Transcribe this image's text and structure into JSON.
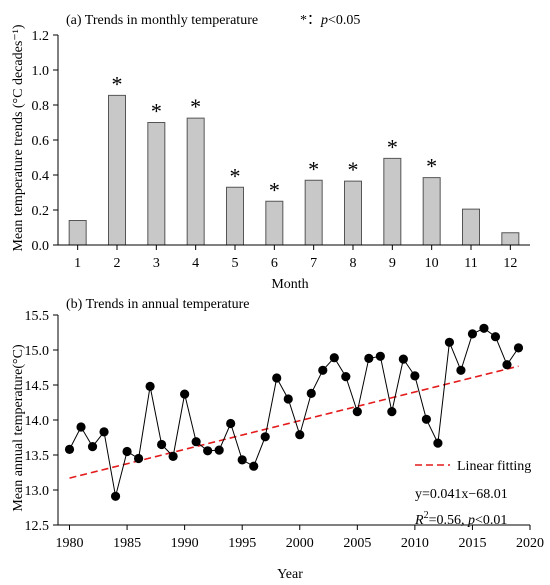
{
  "chart_data": [
    {
      "type": "bar",
      "title": "(a) Trends in monthly temperature",
      "significance_note": "*：p<0.05",
      "significance_marker": "*",
      "xlabel": "Month",
      "ylabel": "Mean temperature trends (°C decades⁻¹)",
      "ylim": [
        0,
        1.2
      ],
      "yticks": [
        "0.0",
        "0.2",
        "0.4",
        "0.6",
        "0.8",
        "1.0",
        "1.2"
      ],
      "categories": [
        "1",
        "2",
        "3",
        "4",
        "5",
        "6",
        "7",
        "8",
        "9",
        "10",
        "11",
        "12"
      ],
      "values": [
        0.14,
        0.855,
        0.7,
        0.725,
        0.33,
        0.25,
        0.37,
        0.365,
        0.495,
        0.385,
        0.205,
        0.07
      ],
      "significant": [
        false,
        true,
        true,
        true,
        true,
        true,
        true,
        true,
        true,
        true,
        false,
        false
      ],
      "bar_color": "#c8c8c8"
    },
    {
      "type": "line",
      "title": "(b) Trends in annual temperature",
      "xlabel": "Year",
      "ylabel": "Mean annual temperature(°C)",
      "xlim": [
        1979,
        2020
      ],
      "ylim": [
        12.5,
        15.5
      ],
      "xticks": [
        "1980",
        "1985",
        "1990",
        "1995",
        "2000",
        "2005",
        "2010",
        "2015",
        "2020"
      ],
      "yticks": [
        "12.5",
        "13.0",
        "13.5",
        "14.0",
        "14.5",
        "15.0",
        "15.5"
      ],
      "x": [
        1980,
        1981,
        1982,
        1983,
        1984,
        1985,
        1986,
        1987,
        1988,
        1989,
        1990,
        1991,
        1992,
        1993,
        1994,
        1995,
        1996,
        1997,
        1998,
        1999,
        2000,
        2001,
        2002,
        2003,
        2004,
        2005,
        2006,
        2007,
        2008,
        2009,
        2010,
        2011,
        2012,
        2013,
        2014,
        2015,
        2016,
        2017,
        2018,
        2019
      ],
      "y": [
        13.58,
        13.9,
        13.62,
        13.83,
        12.91,
        13.55,
        13.45,
        14.48,
        13.65,
        13.48,
        14.37,
        13.69,
        13.56,
        13.57,
        13.95,
        13.43,
        13.34,
        13.76,
        14.6,
        14.3,
        13.79,
        14.38,
        14.71,
        14.89,
        14.62,
        14.12,
        14.88,
        14.91,
        14.12,
        14.87,
        14.63,
        14.01,
        13.67,
        15.11,
        14.71,
        15.23,
        15.31,
        15.19,
        14.79,
        15.03
      ],
      "fit": {
        "slope": 0.041,
        "intercept": -68.01,
        "color": "#e41a1c"
      },
      "legend": {
        "label": "Linear fitting",
        "equation": "y=0.041x−68.01",
        "r2_label": "R",
        "r2_sup": "2",
        "r2_value": "=0.56, ",
        "p_label": "p",
        "p_value": "<0.01"
      }
    }
  ]
}
